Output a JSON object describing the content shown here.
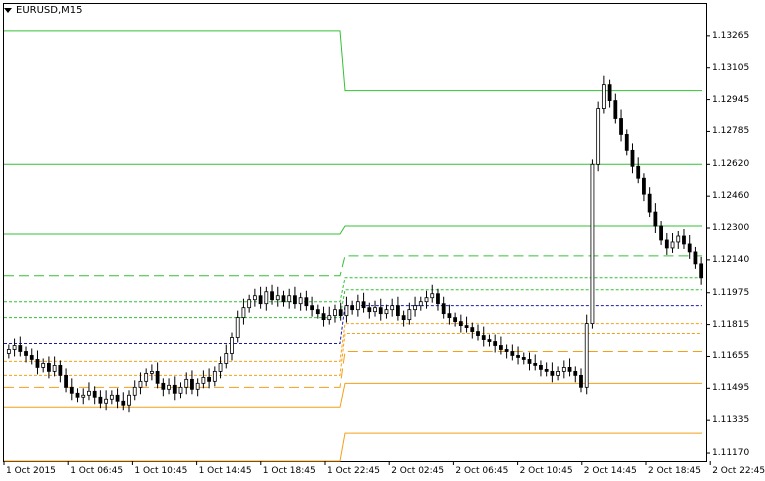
{
  "chart": {
    "title": "EURUSD,M15"
  },
  "colors": {
    "bull_body": "#ffffff",
    "bear_body": "#000000",
    "wick": "#000000",
    "resistance": "#34c134",
    "support": "#f4a017",
    "pivot": "#1a1aa6",
    "grid_frame": "#000000"
  },
  "chart_data": {
    "type": "candlestick",
    "title": "EURUSD,M15",
    "ylim": [
      1.1113,
      1.13425
    ],
    "price_ticks": [
      "1.13265",
      "1.13105",
      "1.12945",
      "1.12785",
      "1.12620",
      "1.12460",
      "1.12300",
      "1.12140",
      "1.11975",
      "1.11815",
      "1.11655",
      "1.11495",
      "1.11335",
      "1.11170"
    ],
    "price_tick_values": [
      1.13265,
      1.13105,
      1.12945,
      1.12785,
      1.1262,
      1.1246,
      1.123,
      1.1214,
      1.11975,
      1.11815,
      1.11655,
      1.11495,
      1.11335,
      1.1117
    ],
    "time_ticks": [
      "1 Oct 2015",
      "1 Oct 06:45",
      "1 Oct 10:45",
      "1 Oct 14:45",
      "1 Oct 18:45",
      "1 Oct 22:45",
      "2 Oct 02:45",
      "2 Oct 06:45",
      "2 Oct 10:45",
      "2 Oct 14:45",
      "2 Oct 18:45",
      "2 Oct 22:45"
    ],
    "levels": {
      "day1": {
        "R3": 1.1329,
        "R2": 1.1262,
        "R1": 1.1227,
        "R1_mid": 1.1206,
        "R2_mid": 1.1193,
        "R3_mid": 1.1185,
        "pivot": 1.1172,
        "S1_mid": 1.1163,
        "S2_mid": 1.1156,
        "S3_mid": 1.115,
        "S1": 1.114,
        "S2": 1.1113
      },
      "day2": {
        "R3": 1.1299,
        "R2": 1.1262,
        "R1": 1.1231,
        "R1_mid": 1.1216,
        "R2_mid": 1.1205,
        "R3_mid": 1.1199,
        "pivot": 1.1191,
        "S1_mid": 1.1182,
        "S2_mid": 1.1177,
        "S3_mid": 1.1168,
        "S1": 1.1152,
        "S2": 1.1127
      }
    },
    "candles_close_path": [
      1.1169,
      1.1171,
      1.1168,
      1.1166,
      1.1164,
      1.116,
      1.1162,
      1.1158,
      1.1161,
      1.1156,
      1.115,
      1.1147,
      1.1145,
      1.1146,
      1.1148,
      1.1145,
      1.1142,
      1.1144,
      1.1146,
      1.1143,
      1.1141,
      1.1146,
      1.115,
      1.1153,
      1.1157,
      1.1158,
      1.1152,
      1.1149,
      1.1151,
      1.1147,
      1.115,
      1.1154,
      1.1149,
      1.1152,
      1.1155,
      1.1153,
      1.1158,
      1.1162,
      1.1167,
      1.1175,
      1.1185,
      1.119,
      1.1194,
      1.1196,
      1.1192,
      1.1198,
      1.1194,
      1.1196,
      1.1193,
      1.1196,
      1.1192,
      1.1195,
      1.1191,
      1.1189,
      1.1187,
      1.1184,
      1.1186,
      1.1189,
      1.1186,
      1.1191,
      1.1189,
      1.1193,
      1.119,
      1.1188,
      1.119,
      1.1187,
      1.1189,
      1.1191,
      1.1186,
      1.1184,
      1.1189,
      1.1191,
      1.1193,
      1.1195,
      1.1197,
      1.1192,
      1.1187,
      1.1185,
      1.1183,
      1.1181,
      1.118,
      1.1178,
      1.1176,
      1.1174,
      1.1173,
      1.1171,
      1.1169,
      1.1168,
      1.1166,
      1.1165,
      1.1164,
      1.1162,
      1.1161,
      1.1159,
      1.1158,
      1.1156,
      1.1158,
      1.116,
      1.1158,
      1.1156,
      1.115,
      1.1182,
      1.1262,
      1.129,
      1.1302,
      1.1294,
      1.1285,
      1.1277,
      1.1269,
      1.1261,
      1.1255,
      1.1247,
      1.1238,
      1.1231,
      1.1224,
      1.122,
      1.1223,
      1.1226,
      1.1222,
      1.1218,
      1.1212,
      1.1205
    ]
  }
}
